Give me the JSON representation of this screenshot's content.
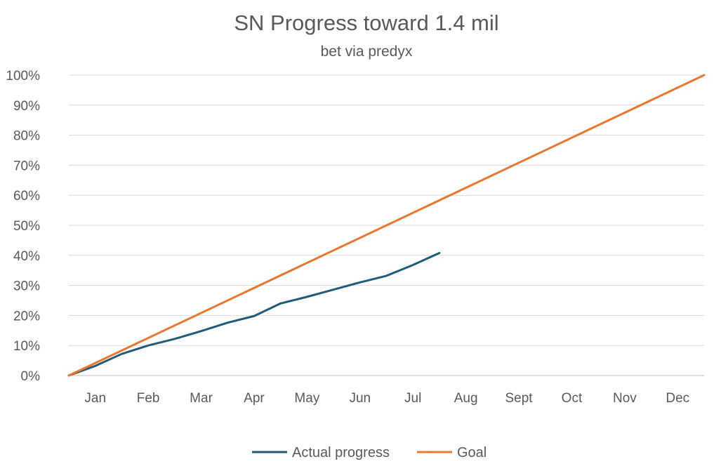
{
  "chart_data": {
    "type": "line",
    "title": "SN Progress toward 1.4 mil",
    "subtitle": "bet via predyx",
    "xlabel": "",
    "ylabel": "",
    "categories": [
      "Jan",
      "Feb",
      "Mar",
      "Apr",
      "May",
      "Jun",
      "Jul",
      "Aug",
      "Sept",
      "Oct",
      "Nov",
      "Dec"
    ],
    "x_range": [
      0,
      12
    ],
    "ylim": [
      0,
      1
    ],
    "y_ticks": [
      0,
      0.1,
      0.2,
      0.3,
      0.4,
      0.5,
      0.6,
      0.7,
      0.8,
      0.9,
      1.0
    ],
    "y_tick_labels": [
      "0%",
      "10%",
      "20%",
      "30%",
      "40%",
      "50%",
      "60%",
      "70%",
      "80%",
      "90%",
      "100%"
    ],
    "grid": true,
    "legend_position": "bottom",
    "series": [
      {
        "name": "Actual progress",
        "color": "#1f5c7a",
        "x": [
          0,
          0.5,
          1,
          1.5,
          2,
          2.5,
          3,
          3.5,
          4,
          4.5,
          5,
          5.5,
          6,
          6.5,
          7
        ],
        "y": [
          0,
          0.032,
          0.072,
          0.1,
          0.122,
          0.148,
          0.176,
          0.198,
          0.24,
          0.262,
          0.286,
          0.31,
          0.332,
          0.368,
          0.408
        ]
      },
      {
        "name": "Goal",
        "color": "#e8782f",
        "x": [
          0,
          12
        ],
        "y": [
          0,
          1.0
        ]
      }
    ]
  }
}
